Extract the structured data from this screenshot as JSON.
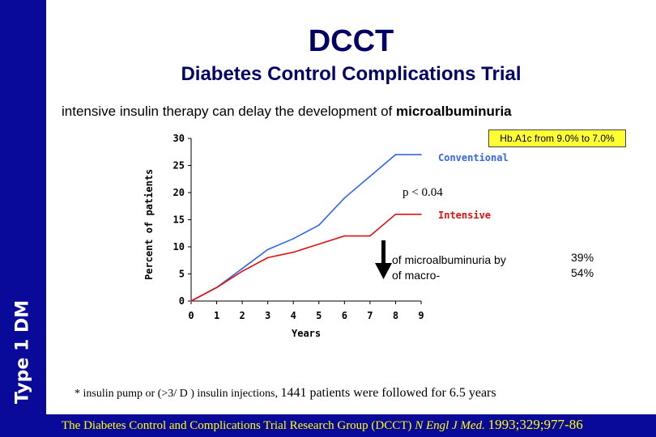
{
  "slide": {
    "title": "DCCT",
    "subtitle": "Diabetes Control Complications Trial",
    "lead_prefix": "intensive insulin therapy can delay the development of ",
    "lead_emphasis": "microalbuminuria",
    "side_label": "Type 1 DM",
    "hba1c_note": "Hb.A1c from 9.0% to 7.0%",
    "p_value": "p < 0.04",
    "reduction_line1": "of microalbuminuria by",
    "reduction_line2": "of macro-",
    "pct_1": "39%",
    "pct_2": "54%",
    "footnote_small": "* insulin pump or (>3/ D ) insulin injections,",
    "footnote_big": "1441 patients were followed for 6.5 years",
    "citation_text": "The Diabetes Control and Complications Trial Research Group (DCCT)",
    "citation_journal": "N Engl J Med.",
    "citation_year": "1993;329;977-86"
  },
  "colors": {
    "sidebar": "#0a0a9a",
    "title": "#000066",
    "conventional": "#3366ee",
    "intensive": "#dd1111",
    "highlight": "#ffff33",
    "citation": "#ffff00"
  },
  "chart_data": {
    "type": "line",
    "x": [
      0,
      1,
      2,
      3,
      4,
      5,
      6,
      7,
      8,
      9
    ],
    "xlabel": "Years",
    "ylabel": "Percent of patients",
    "xlim": [
      0,
      9
    ],
    "ylim": [
      0,
      30
    ],
    "x_ticks": [
      0,
      1,
      2,
      3,
      4,
      5,
      6,
      7,
      8,
      9
    ],
    "y_ticks": [
      0,
      5,
      10,
      15,
      20,
      25,
      30
    ],
    "series": [
      {
        "name": "Conventional",
        "color": "#3366ee",
        "x": [
          0,
          1,
          2,
          3,
          4,
          5,
          6,
          7,
          8,
          9
        ],
        "values": [
          0,
          2.5,
          6,
          9.5,
          11.5,
          14,
          19,
          23,
          27,
          27
        ]
      },
      {
        "name": "Intensive",
        "color": "#dd1111",
        "x": [
          0,
          1,
          2,
          3,
          4,
          5,
          6,
          7,
          8,
          9
        ],
        "values": [
          0,
          2.5,
          5.5,
          8,
          9,
          10.5,
          12,
          12,
          16,
          16
        ]
      }
    ]
  }
}
